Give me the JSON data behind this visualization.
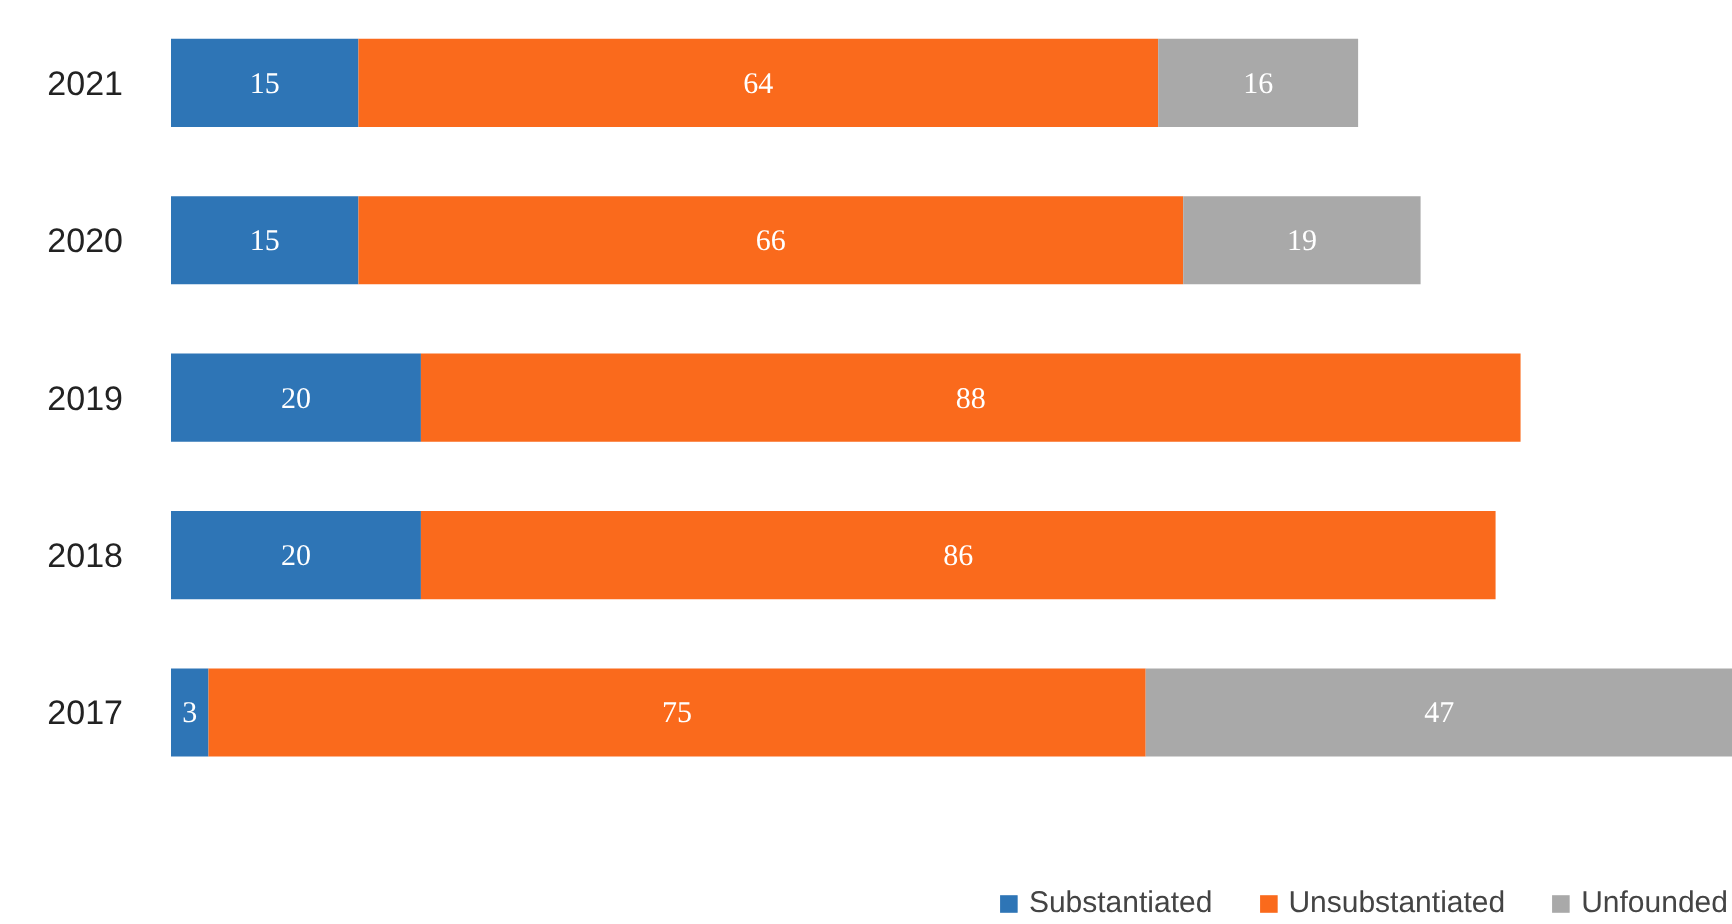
{
  "chart_data": {
    "type": "bar",
    "orientation": "horizontal",
    "stacked": true,
    "data_labels": true,
    "legend": "bottom right",
    "tick_labels": "y",
    "categories": [
      "2021",
      "2020",
      "2019",
      "2018",
      "2017"
    ],
    "series": [
      {
        "name": "Substantiated",
        "color": "#2e75b6",
        "values": [
          15,
          15,
          20,
          20,
          3
        ]
      },
      {
        "name": "Unsubstantiated",
        "color": "#fa6a1c",
        "values": [
          64,
          66,
          88,
          86,
          75
        ]
      },
      {
        "name": "Unfounded",
        "color": "#a9a9a9",
        "values": [
          16,
          19,
          null,
          null,
          47
        ]
      }
    ]
  }
}
